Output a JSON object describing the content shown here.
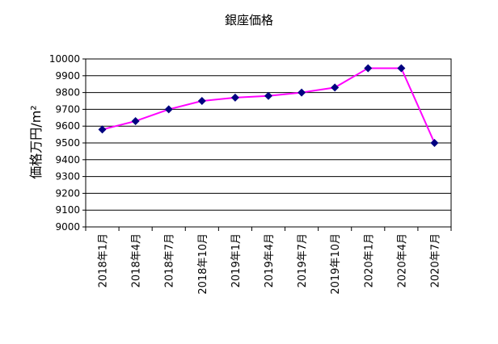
{
  "chart_data": {
    "type": "line",
    "title": "銀座価格",
    "ylabel": "価格万円/m²",
    "xlabel": "",
    "ylim": [
      9000,
      10000
    ],
    "ytick_step": 100,
    "yticks": [
      "9000",
      "9100",
      "9200",
      "9300",
      "9400",
      "9500",
      "9600",
      "9700",
      "9800",
      "9900",
      "10000"
    ],
    "categories": [
      "2018年1月",
      "2018年4月",
      "2018年7月",
      "2018年10月",
      "2019年1月",
      "2019年4月",
      "2019年7月",
      "2019年10月",
      "2020年1月",
      "2020年4月",
      "2020年7月"
    ],
    "series": [
      {
        "values": [
          9580,
          9630,
          9700,
          9750,
          9770,
          9780,
          9800,
          9830,
          9945,
          9945,
          9500
        ],
        "line_color": "#ff00ff",
        "marker_color": "#000080"
      }
    ],
    "grid": true,
    "legend": "none"
  }
}
